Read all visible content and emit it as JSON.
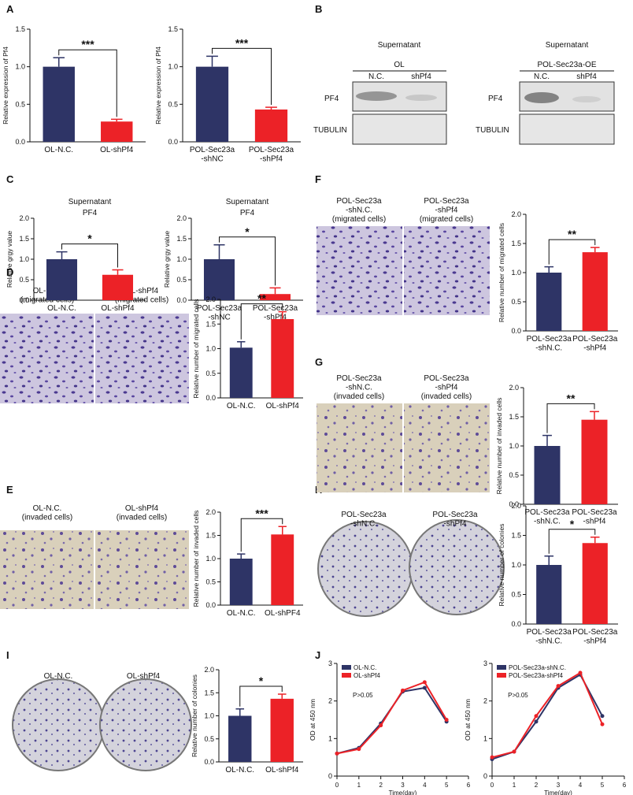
{
  "panel_labels": [
    "A",
    "B",
    "C",
    "D",
    "E",
    "F",
    "G",
    "H",
    "I",
    "J"
  ],
  "chart_data": [
    {
      "type": "bar",
      "ylabel": "Relative expression of Pf4",
      "categories": [
        "OL-N.C.",
        "OL-shPf4"
      ],
      "values": [
        1.0,
        0.27
      ],
      "errors": [
        0.12,
        0.03
      ],
      "colors": [
        "#2e3466",
        "#ec2227"
      ],
      "ylim": [
        0,
        1.5
      ],
      "yticks": [
        {
          "value": 0,
          "label": "0.0"
        },
        0.5,
        {
          "value": 1,
          "label": "1.0"
        },
        1.5
      ],
      "annotation": "***"
    },
    {
      "type": "bar",
      "ylabel": "Relative expression of Pf4",
      "categories": [
        "POL-Sec23a\n-shNC",
        "POL-Sec23a\n-shPf4"
      ],
      "values": [
        1.0,
        0.43
      ],
      "errors": [
        0.14,
        0.03
      ],
      "colors": [
        "#2e3466",
        "#ec2227"
      ],
      "ylim": [
        0,
        1.5
      ],
      "yticks": [
        {
          "value": 0,
          "label": "0.0"
        },
        0.5,
        {
          "value": 1,
          "label": "1.0"
        },
        1.5
      ],
      "annotation": "***"
    },
    {
      "type": "bar",
      "title": "Supernatant",
      "subtitle": "PF4",
      "ylabel": "Relative grgy value",
      "categories": [
        "OL-N.C.",
        "OL-shPf4"
      ],
      "values": [
        1.0,
        0.62
      ],
      "errors": [
        0.18,
        0.12
      ],
      "colors": [
        "#2e3466",
        "#ec2227"
      ],
      "ylim": [
        0,
        2
      ],
      "yticks": [
        {
          "value": 0,
          "label": "0.0"
        },
        0.5,
        {
          "value": 1,
          "label": "1.0"
        },
        1.5,
        {
          "value": 2,
          "label": "2.0"
        }
      ],
      "annotation": "*"
    },
    {
      "type": "bar",
      "title": "Supernatant",
      "subtitle": "PF4",
      "ylabel": "Relative grgy value",
      "categories": [
        "POL-Sec23a\n-shNC",
        "POL-Sec23a\n-shPf4"
      ],
      "values": [
        1.0,
        0.15
      ],
      "errors": [
        0.35,
        0.15
      ],
      "colors": [
        "#2e3466",
        "#ec2227"
      ],
      "ylim": [
        0,
        2
      ],
      "yticks": [
        {
          "value": 0,
          "label": "0.0"
        },
        0.5,
        {
          "value": 1,
          "label": "1.0"
        },
        1.5,
        {
          "value": 2,
          "label": "2.0"
        }
      ],
      "annotation": "*"
    },
    {
      "type": "bar",
      "ylabel": "Relative number of migrated cells",
      "categories": [
        "POL-Sec23a\n-shN.C.",
        "POL-Sec23a\n-shPf4"
      ],
      "values": [
        1.0,
        1.35
      ],
      "errors": [
        0.1,
        0.08
      ],
      "colors": [
        "#2e3466",
        "#ec2227"
      ],
      "ylim": [
        0,
        2
      ],
      "yticks": [
        {
          "value": 0,
          "label": "0.0"
        },
        0.5,
        {
          "value": 1,
          "label": "1.0"
        },
        1.5,
        {
          "value": 2,
          "label": "2.0"
        }
      ],
      "annotation": "**"
    },
    {
      "type": "bar",
      "ylabel": "Relative number of migrated cells",
      "categories": [
        "OL-N.C.",
        "OL-shPf4"
      ],
      "values": [
        1.02,
        1.6
      ],
      "errors": [
        0.12,
        0.15
      ],
      "colors": [
        "#2e3466",
        "#ec2227"
      ],
      "ylim": [
        0,
        2
      ],
      "yticks": [
        {
          "value": 0,
          "label": "0.0"
        },
        0.5,
        {
          "value": 1,
          "label": "1.0"
        },
        1.5,
        {
          "value": 2,
          "label": "2.0"
        }
      ],
      "annotation": "**"
    },
    {
      "type": "bar",
      "ylabel": "Relative number of invaded cells",
      "categories": [
        "POL-Sec23a\n-shN.C.",
        "POL-Sec23a\n-shPf4"
      ],
      "values": [
        1.0,
        1.45
      ],
      "errors": [
        0.18,
        0.14
      ],
      "colors": [
        "#2e3466",
        "#ec2227"
      ],
      "ylim": [
        0,
        2
      ],
      "yticks": [
        {
          "value": 0,
          "label": "0.0"
        },
        0.5,
        {
          "value": 1,
          "label": "1.0"
        },
        1.5,
        {
          "value": 2,
          "label": "2.0"
        }
      ],
      "annotation": "**"
    },
    {
      "type": "bar",
      "ylabel": "Relative number of invaded cells",
      "categories": [
        "OL-N.C.",
        "OL-shPF4"
      ],
      "values": [
        1.0,
        1.52
      ],
      "errors": [
        0.1,
        0.17
      ],
      "colors": [
        "#2e3466",
        "#ec2227"
      ],
      "ylim": [
        0,
        2
      ],
      "yticks": [
        {
          "value": 0,
          "label": "0.0"
        },
        0.5,
        {
          "value": 1,
          "label": "1.0"
        },
        1.5,
        {
          "value": 2,
          "label": "2.0"
        }
      ],
      "annotation": "***"
    },
    {
      "type": "bar",
      "ylabel": "Relative number of colonies",
      "categories": [
        "POL-Sec23a\n-shN.C.",
        "POL-Sec23a\n-shPf4"
      ],
      "values": [
        1.0,
        1.37
      ],
      "errors": [
        0.15,
        0.1
      ],
      "colors": [
        "#2e3466",
        "#ec2227"
      ],
      "ylim": [
        0,
        2
      ],
      "yticks": [
        {
          "value": 0,
          "label": "0.0"
        },
        0.5,
        {
          "value": 1,
          "label": "1.0"
        },
        1.5,
        {
          "value": 2,
          "label": "2.0"
        }
      ],
      "annotation": "*"
    },
    {
      "type": "bar",
      "ylabel": "Relative number of colonies",
      "categories": [
        "OL-N.C.",
        "OL-shPf4"
      ],
      "values": [
        1.0,
        1.37
      ],
      "errors": [
        0.15,
        0.1
      ],
      "colors": [
        "#2e3466",
        "#ec2227"
      ],
      "ylim": [
        0,
        2
      ],
      "yticks": [
        {
          "value": 0,
          "label": "0.0"
        },
        0.5,
        {
          "value": 1,
          "label": "1.0"
        },
        1.5,
        {
          "value": 2,
          "label": "2.0"
        }
      ],
      "annotation": "*"
    },
    {
      "type": "line",
      "xlabel": "Time(day)",
      "ylabel": "OD at 450 nm",
      "x": [
        0,
        1,
        2,
        3,
        4,
        5
      ],
      "xlim": [
        0,
        6
      ],
      "xticks": [
        0,
        1,
        2,
        3,
        4,
        5,
        6
      ],
      "ylim": [
        0,
        3
      ],
      "yticks": [
        0,
        1,
        2,
        3
      ],
      "legend": "upper left",
      "annotation": "P>0.05",
      "series": [
        {
          "name": "OL-N.C.",
          "color": "#2e3466",
          "values": [
            0.6,
            0.75,
            1.4,
            2.25,
            2.35,
            1.45
          ]
        },
        {
          "name": "OL-shPf4",
          "color": "#ec2227",
          "values": [
            0.6,
            0.72,
            1.35,
            2.28,
            2.5,
            1.5
          ]
        }
      ]
    },
    {
      "type": "line",
      "xlabel": "Time(day)",
      "ylabel": "OD at 450 nm",
      "x": [
        0,
        1,
        2,
        3,
        4,
        5
      ],
      "xlim": [
        0,
        6
      ],
      "xticks": [
        0,
        1,
        2,
        3,
        4,
        5,
        6
      ],
      "ylim": [
        0,
        3
      ],
      "yticks": [
        0,
        1,
        2,
        3
      ],
      "legend": "upper left",
      "annotation": "P>0.05",
      "series": [
        {
          "name": "POL-Sec23a-shN.C.",
          "color": "#2e3466",
          "values": [
            0.45,
            0.65,
            1.45,
            2.35,
            2.7,
            1.6
          ]
        },
        {
          "name": "POL-Sec23a-shPf4",
          "color": "#ec2227",
          "values": [
            0.5,
            0.65,
            1.6,
            2.4,
            2.75,
            1.38
          ]
        }
      ]
    }
  ],
  "blots": [
    {
      "title": "Supernatant",
      "group": "OL",
      "lanes": [
        "N.C.",
        "shPf4"
      ],
      "rows": [
        "PF4",
        "TUBULIN"
      ]
    },
    {
      "title": "Supernatant",
      "group": "POL-Sec23a-OE",
      "lanes": [
        "N.C.",
        "shPf4"
      ],
      "rows": [
        "PF4",
        "TUBULIN"
      ]
    }
  ],
  "micrographs": [
    [
      "POL-Sec23a\n-shN.C.\n(migrated cells)",
      "POL-Sec23a\n-shPf4\n(migrated cells)"
    ],
    [
      "OL-N.C.\n(migrated cells)",
      "OL-shPf4\n(migrated cells)"
    ],
    [
      "POL-Sec23a\n-shN.C.\n(invaded cells)",
      "POL-Sec23a\n-shPf4\n(invaded cells)"
    ],
    [
      "OL-N.C.\n(invaded cells)",
      "OL-shPf4\n(invaded cells)"
    ],
    [
      "POL-Sec23a\n-shN.C.",
      "POL-Sec23a\n-shPf4"
    ],
    [
      "OL-N.C.",
      "OL-shPf4"
    ]
  ]
}
